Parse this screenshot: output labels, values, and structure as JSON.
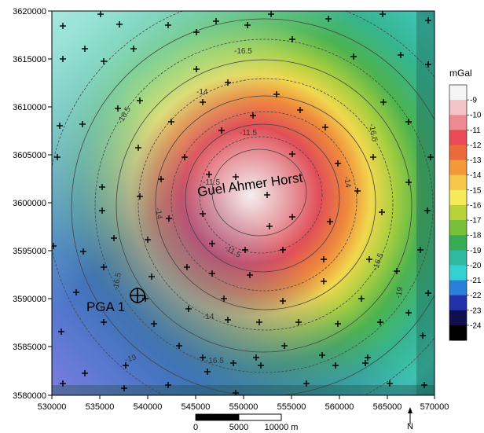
{
  "map": {
    "x_ticks": [
      "530000",
      "535000",
      "540000",
      "545000",
      "550000",
      "555000",
      "560000",
      "565000",
      "570000"
    ],
    "y_ticks": [
      "3620000",
      "3615000",
      "3610000",
      "3605000",
      "3600000",
      "3595000",
      "3590000",
      "3585000",
      "3580000"
    ],
    "feature_label": "Guel Ahmer Horst",
    "well_label": "PGA 1",
    "contour_labels": [
      "-16.5",
      "-16.5",
      "-16.5",
      "-16.5",
      "-16.5",
      "-14",
      "-14",
      "-14",
      "-14",
      "-11.5",
      "-11.5",
      "-11.5",
      "-19",
      "-19",
      "-16.5"
    ],
    "north_label": "N"
  },
  "legend": {
    "title": "mGal",
    "labels": [
      "-9",
      "-10",
      "-11",
      "-12",
      "-13",
      "-14",
      "-15",
      "-16",
      "-17",
      "-18",
      "-19",
      "-20",
      "-21",
      "-22",
      "-23",
      "-24"
    ],
    "colors": [
      "#f5f5f5",
      "#f2c4c8",
      "#ee8a92",
      "#e84b55",
      "#ea6a3a",
      "#f29a3a",
      "#f5c74a",
      "#f4ea5a",
      "#b8d23a",
      "#78bf3c",
      "#3aab55",
      "#2fb9a0",
      "#35d0d0",
      "#2a7fd8",
      "#2233aa",
      "#101050",
      "#000000"
    ]
  },
  "scale_bar": {
    "labels": [
      "0",
      "5000",
      "10000 m"
    ]
  }
}
